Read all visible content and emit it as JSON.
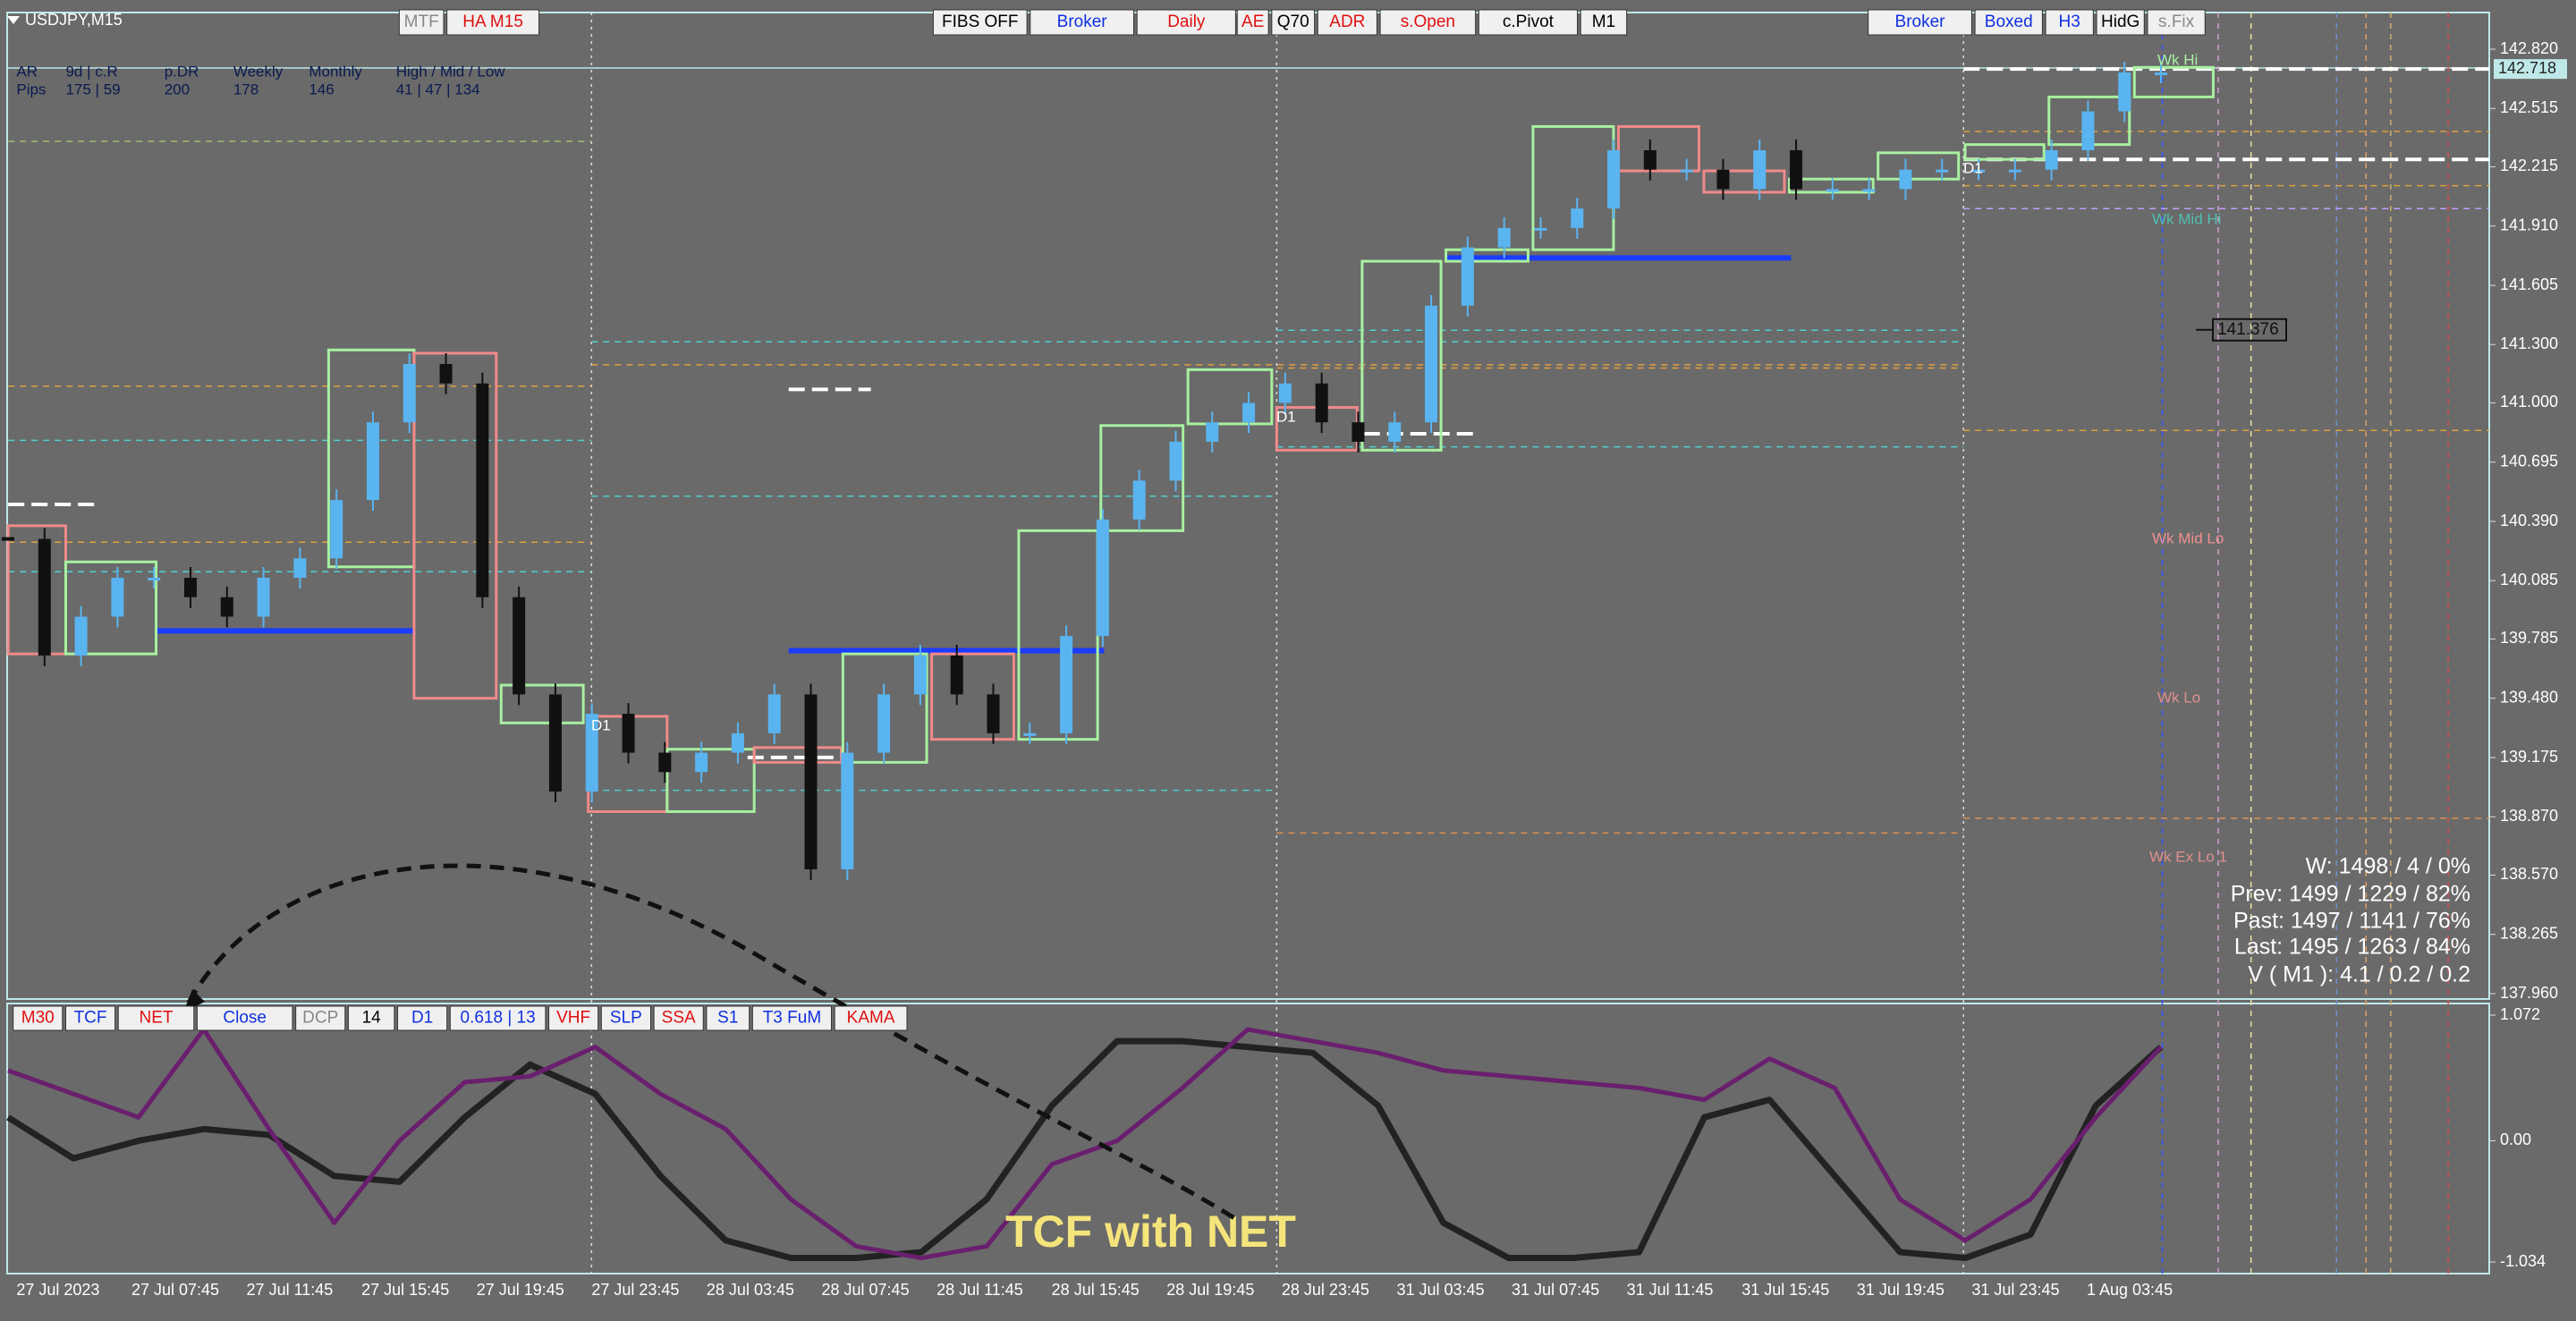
{
  "header": {
    "symbol": "USDJPY,M15",
    "buttons": [
      "MTF",
      "HA M15",
      "FIBS OFF",
      "Broker",
      "Daily",
      "AE",
      "Q70",
      "ADR",
      "s.Open",
      "c.Pivot",
      "M1",
      "Broker",
      "Boxed",
      "H3",
      "HidG",
      "s.Fix"
    ]
  },
  "info": {
    "row1": [
      "AR",
      "9d | c.R",
      "p.DR",
      "Weekly",
      "Monthly",
      "High / Mid / Low"
    ],
    "row2": [
      "Pips",
      "175 | 59",
      "200",
      "178",
      "146",
      "41 | 47 | 134"
    ]
  },
  "price_axis": {
    "labels": [
      "142.820",
      "142.515",
      "142.215",
      "141.910",
      "141.605",
      "141.300",
      "141.000",
      "140.695",
      "140.390",
      "140.085",
      "139.785",
      "139.480",
      "139.175",
      "138.870",
      "138.570",
      "138.265",
      "137.960"
    ],
    "current": "142.718"
  },
  "time_axis": [
    "27 Jul 2023",
    "27 Jul 07:45",
    "27 Jul 11:45",
    "27 Jul 15:45",
    "27 Jul 19:45",
    "27 Jul 23:45",
    "28 Jul 03:45",
    "28 Jul 07:45",
    "28 Jul 11:45",
    "28 Jul 15:45",
    "28 Jul 19:45",
    "28 Jul 23:45",
    "31 Jul 03:45",
    "31 Jul 07:45",
    "31 Jul 11:45",
    "31 Jul 15:45",
    "31 Jul 19:45",
    "31 Jul 23:45",
    "1 Aug 03:45"
  ],
  "price_closes": [
    140.3,
    139.7,
    139.9,
    140.1,
    140.1,
    140.0,
    139.9,
    140.1,
    140.2,
    140.5,
    140.9,
    141.2,
    141.1,
    140.0,
    139.5,
    139.0,
    139.4,
    139.2,
    139.1,
    139.2,
    139.3,
    139.5,
    138.6,
    139.2,
    139.5,
    139.7,
    139.5,
    139.3,
    139.3,
    139.8,
    140.4,
    140.6,
    140.8,
    140.9,
    141.0,
    141.1,
    140.9,
    140.8,
    140.9,
    141.5,
    141.8,
    141.9,
    141.9,
    142.0,
    142.3,
    142.2,
    142.2,
    142.1,
    142.3,
    142.1,
    142.1,
    142.1,
    142.2,
    142.2,
    142.2,
    142.2,
    142.3,
    142.5,
    142.7,
    142.7
  ],
  "levels": [
    "Wk Hi",
    "Wk Mid Hi",
    "Wk Mid Lo",
    "Wk Lo",
    "Wk Ex Lo 1"
  ],
  "price_marker": "141.376",
  "day_labels": [
    "D1",
    "D1",
    "D1"
  ],
  "stats": [
    "W: 1498 / 4 / 0%",
    "Prev: 1499 / 1229 / 82%",
    "Past: 1497 / 1141 / 76%",
    "Last: 1495 / 1263 / 84%",
    "V ( M1 ): 4.1 / 0.2 / 0.2"
  ],
  "indicator": {
    "buttons": [
      "M30",
      "TCF",
      "NET",
      "Close",
      "DCP",
      "14",
      "D1",
      "0.618 | 13",
      "VHF",
      "SLP",
      "SSA",
      "S1",
      "T3 FuM",
      "KAMA"
    ],
    "axis": [
      "1.072",
      "0.00",
      "-1.034"
    ],
    "tcf": [
      0.2,
      -0.15,
      0.0,
      0.1,
      0.05,
      -0.3,
      -0.35,
      0.2,
      0.65,
      0.4,
      -0.3,
      -0.85,
      -1.0,
      -1.0,
      -0.95,
      -0.5,
      0.3,
      0.85,
      0.85,
      0.8,
      0.75,
      0.3,
      -0.7,
      -1.0,
      -1.0,
      -0.95,
      0.2,
      0.35,
      -0.3,
      -0.95,
      -1.0,
      -0.8,
      0.3,
      0.8
    ],
    "net": [
      0.6,
      0.4,
      0.2,
      0.95,
      0.1,
      -0.7,
      0.0,
      0.5,
      0.55,
      0.8,
      0.4,
      0.1,
      -0.5,
      -0.9,
      -1.0,
      -0.9,
      -0.2,
      0.0,
      0.45,
      0.95,
      0.85,
      0.75,
      0.6,
      0.55,
      0.5,
      0.45,
      0.35,
      0.7,
      0.45,
      -0.5,
      -0.85,
      -0.5,
      0.2,
      0.8
    ],
    "annotation": "TCF with NET"
  }
}
